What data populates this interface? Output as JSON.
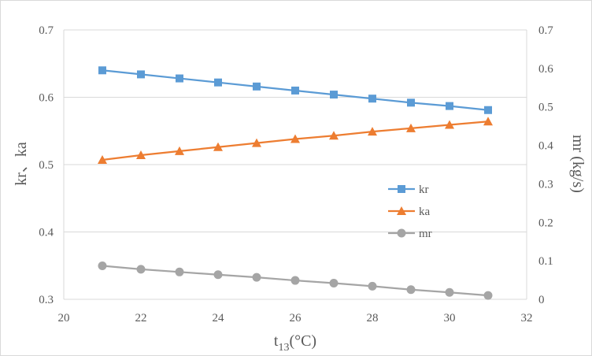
{
  "chart_data": {
    "type": "line",
    "title": "",
    "xlabel": "t13 (°C)",
    "xlabel_main": "t",
    "xlabel_sub": "13",
    "xlabel_unit": "(°C)",
    "ylabel_left": "kr、ka",
    "ylabel_right": "mr (kg/s)",
    "xlim": [
      20,
      32
    ],
    "xticks": [
      20,
      22,
      24,
      26,
      28,
      30,
      32
    ],
    "ylim_left": [
      0.3,
      0.7
    ],
    "yticks_left": [
      "0.3",
      "0.4",
      "0.5",
      "0.6",
      "0.7"
    ],
    "ylim_right": [
      0,
      0.7
    ],
    "yticks_right": [
      "0",
      "0.1",
      "0.2",
      "0.3",
      "0.4",
      "0.5",
      "0.6",
      "0.7"
    ],
    "grid": "horizontal",
    "legend_position": "right-center",
    "x": [
      21,
      22,
      23,
      24,
      25,
      26,
      27,
      28,
      29,
      30,
      31
    ],
    "series": [
      {
        "name": "kr",
        "axis": "left",
        "color": "#5b9bd5",
        "marker": "square",
        "values": [
          0.64,
          0.634,
          0.628,
          0.622,
          0.616,
          0.61,
          0.604,
          0.598,
          0.592,
          0.587,
          0.581
        ]
      },
      {
        "name": "ka",
        "axis": "left",
        "color": "#ed7d31",
        "marker": "triangle",
        "values": [
          0.507,
          0.514,
          0.52,
          0.526,
          0.532,
          0.538,
          0.543,
          0.549,
          0.554,
          0.559,
          0.564
        ]
      },
      {
        "name": "mr",
        "axis": "right",
        "color": "#a5a5a5",
        "marker": "circle",
        "values": [
          0.087,
          0.078,
          0.071,
          0.064,
          0.057,
          0.049,
          0.042,
          0.034,
          0.025,
          0.018,
          0.01
        ]
      }
    ]
  }
}
